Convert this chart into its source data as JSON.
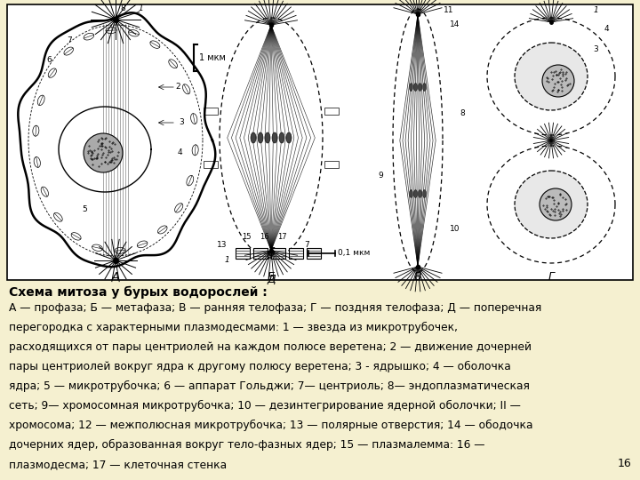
{
  "background_color": "#f5f0d0",
  "diagram_box_color": "#ffffff",
  "title_text": "Схема митоза у бурых водорослей :",
  "body_text_line1": "А — профаза; Б — метафаза; В — ранняя телофаза; Г — поздняя телофаза; Д — поперечная",
  "body_text_line2": "перегородка с характерными плазмодесмами: 1 — звезда из микротрубочек,",
  "body_text_line3": "расходящихся от пары центриолей на каждом полюсе веретена; 2 — движение дочерней",
  "body_text_line4": "пары центриолей вокруг ядра к другому полюсу веретена; 3 - ядрышко; 4 — оболочка",
  "body_text_line5": "ядра; 5 — микротрубочка; 6 — аппарат Гольджи; 7— центриоль; 8— эндоплазматическая",
  "body_text_line6": "сеть; 9— хромосомная микротрубочка; 10 — дезинтегрирование ядерной оболочки; II —",
  "body_text_line7": "хромосома; 12 — межполюсная микротрубочка; 13 — полярные отверстия; 14 — ободочка",
  "body_text_line8": "дочерних ядер, образованная вокруг тело-фазных ядер; 15 — плазмалемма: 16 —",
  "body_text_line9": "плазмодесма; 17 — клеточная стенка",
  "page_number": "16"
}
